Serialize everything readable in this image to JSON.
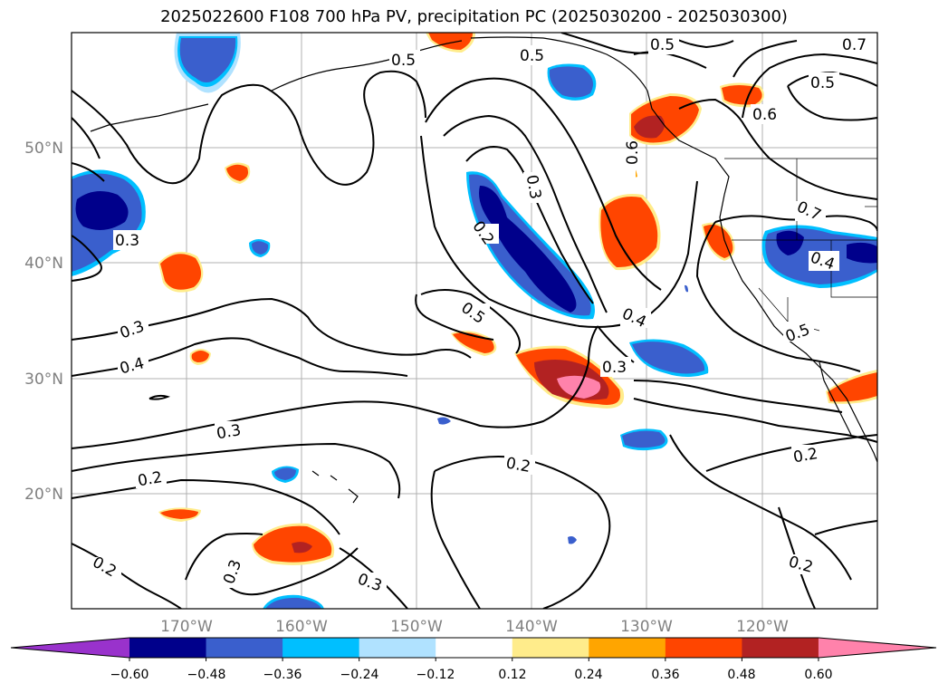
{
  "title": "2025022600 F108 700 hPa PV, precipitation PC (2025030200 - 2025030300)",
  "lat_labels": [
    "50°N",
    "40°N",
    "30°N",
    "20°N"
  ],
  "lon_labels": [
    "170°W",
    "160°W",
    "150°W",
    "140°W",
    "130°W",
    "120°W"
  ],
  "contour_labels": [
    "0.5",
    "0.5",
    "0.5",
    "0.7",
    "0.5",
    "0.6",
    "0.6",
    "0.3",
    "0.2",
    "0.3",
    "0.7",
    "0.4",
    "0.3",
    "0.4",
    "0.5",
    "0.4",
    "0.3",
    "0.3",
    "0.2",
    "0.2",
    "0.2",
    "0.2",
    "0.3",
    "0.3",
    "0.2",
    "0.5"
  ],
  "colorbar": {
    "ticks": [
      "−0.60",
      "−0.48",
      "−0.36",
      "−0.24",
      "−0.12",
      "0.12",
      "0.24",
      "0.36",
      "0.48",
      "0.60"
    ],
    "colors": [
      "#9932cc",
      "#00008b",
      "#3a5fcd",
      "#00bfff",
      "#b0e2ff",
      "#ffffff",
      "#ffec8b",
      "#ffa500",
      "#ff4500",
      "#b22222",
      "#ff82ab"
    ]
  }
}
